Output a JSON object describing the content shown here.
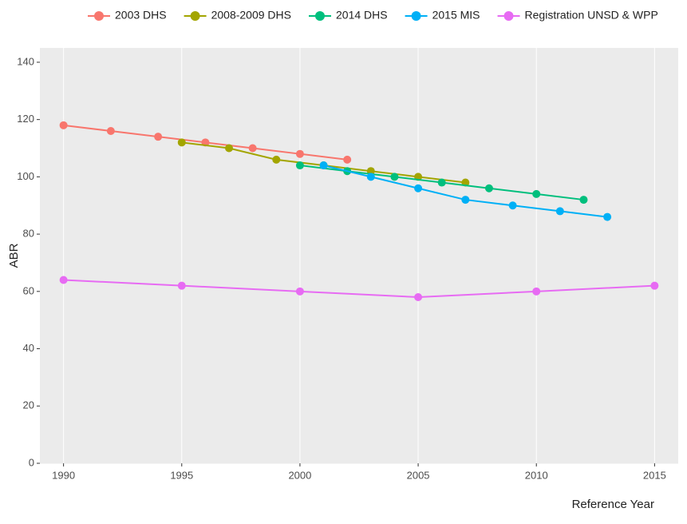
{
  "chart_data": {
    "type": "line",
    "x_label": "Reference Year",
    "y_label": "ABR",
    "legend": "top",
    "grid": true,
    "xlim": [
      1989,
      2016
    ],
    "xticks": [
      1990,
      1995,
      2000,
      2005,
      2010,
      2015
    ],
    "ylim": [
      0,
      145
    ],
    "yticks": [
      0,
      20,
      40,
      60,
      80,
      100,
      120,
      140
    ],
    "series": [
      {
        "name": "2003 DHS",
        "color": "#F8766D",
        "x": [
          1990,
          1992,
          1994,
          1996,
          1998,
          2000,
          2002
        ],
        "values": [
          118,
          116,
          114,
          112,
          110,
          108,
          106
        ]
      },
      {
        "name": "2008-2009 DHS",
        "color": "#A3A500",
        "x": [
          1995,
          1997,
          1999,
          2001,
          2003,
          2005,
          2007
        ],
        "values": [
          112,
          110,
          106,
          104,
          102,
          100,
          98
        ]
      },
      {
        "name": "2014 DHS",
        "color": "#00BF7D",
        "x": [
          2000,
          2002,
          2004,
          2006,
          2008,
          2010,
          2012
        ],
        "values": [
          104,
          102,
          100,
          98,
          96,
          94,
          92
        ]
      },
      {
        "name": "2015 MIS",
        "color": "#00B0F6",
        "x": [
          2001,
          2003,
          2005,
          2007,
          2009,
          2011,
          2013
        ],
        "values": [
          104,
          100,
          96,
          92,
          90,
          88,
          86
        ]
      },
      {
        "name": "Registration UNSD & WPP",
        "color": "#E76BF3",
        "x": [
          1990,
          1995,
          2000,
          2005,
          2010,
          2015
        ],
        "values": [
          64,
          62,
          60,
          58,
          60,
          62
        ]
      }
    ]
  }
}
